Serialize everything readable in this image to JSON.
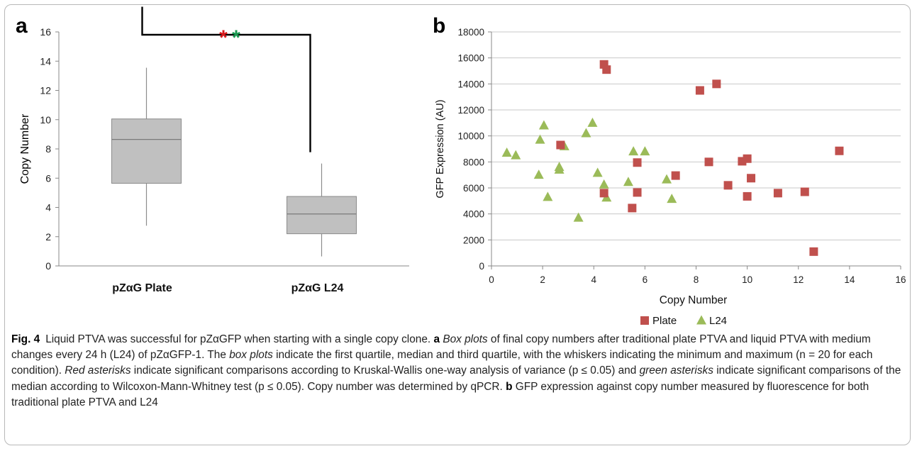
{
  "panel_a_letter": "a",
  "panel_b_letter": "b",
  "chart_data": [
    {
      "type": "box",
      "panel": "a",
      "ylabel": "Copy Number",
      "ylim": [
        0,
        16
      ],
      "yticks": [
        0,
        2,
        4,
        6,
        8,
        10,
        12,
        14,
        16
      ],
      "categories": [
        "pZαG Plate",
        "pZαG L24"
      ],
      "boxes": [
        {
          "min": 2.75,
          "q1": 5.65,
          "median": 8.65,
          "q3": 10.05,
          "max": 13.55
        },
        {
          "min": 0.65,
          "q1": 2.2,
          "median": 3.55,
          "q3": 4.75,
          "max": 7.0
        }
      ],
      "significance": {
        "markers": [
          "*",
          "*"
        ],
        "colors": [
          "#d7191c",
          "#1a9850"
        ]
      },
      "colors": {
        "box_fill": "#c0c0c0",
        "box_stroke": "#8c8c8c"
      }
    },
    {
      "type": "scatter",
      "panel": "b",
      "xlabel": "Copy Number",
      "ylabel": "GFP Expression (AU)",
      "xlim": [
        0,
        16
      ],
      "ylim": [
        0,
        18000
      ],
      "xticks": [
        0,
        2,
        4,
        6,
        8,
        10,
        12,
        14,
        16
      ],
      "yticks": [
        0,
        2000,
        4000,
        6000,
        8000,
        10000,
        12000,
        14000,
        16000,
        18000
      ],
      "grid": "horizontal",
      "legend_position": "bottom",
      "series": [
        {
          "name": "Plate",
          "marker": "square",
          "color": "#c0504d",
          "points": [
            [
              2.7,
              9300
            ],
            [
              4.4,
              15500
            ],
            [
              4.5,
              15100
            ],
            [
              4.4,
              5600
            ],
            [
              5.5,
              4450
            ],
            [
              5.7,
              7950
            ],
            [
              5.7,
              5650
            ],
            [
              7.2,
              6950
            ],
            [
              8.15,
              13500
            ],
            [
              8.8,
              14000
            ],
            [
              8.5,
              8000
            ],
            [
              9.25,
              6200
            ],
            [
              9.8,
              8050
            ],
            [
              10.0,
              8250
            ],
            [
              10.0,
              5350
            ],
            [
              10.15,
              6750
            ],
            [
              11.2,
              5600
            ],
            [
              12.25,
              5700
            ],
            [
              12.6,
              1100
            ],
            [
              13.6,
              8850
            ]
          ]
        },
        {
          "name": "L24",
          "marker": "triangle",
          "color": "#9bbb59",
          "points": [
            [
              0.6,
              8700
            ],
            [
              0.95,
              8500
            ],
            [
              1.85,
              7000
            ],
            [
              1.9,
              9700
            ],
            [
              2.05,
              10800
            ],
            [
              2.2,
              5300
            ],
            [
              2.65,
              7600
            ],
            [
              2.65,
              7400
            ],
            [
              2.85,
              9200
            ],
            [
              3.4,
              3700
            ],
            [
              3.7,
              10200
            ],
            [
              3.95,
              11000
            ],
            [
              4.15,
              7150
            ],
            [
              4.4,
              6250
            ],
            [
              4.5,
              5250
            ],
            [
              5.35,
              6450
            ],
            [
              5.55,
              8800
            ],
            [
              6.0,
              8800
            ],
            [
              6.85,
              6650
            ],
            [
              7.05,
              5150
            ]
          ]
        }
      ]
    }
  ],
  "caption": {
    "fig_label": "Fig. 4",
    "parts": [
      {
        "text": "Liquid PTVA was successful for pZαGFP when starting with a single copy clone. ",
        "style": "normal"
      },
      {
        "text": "a",
        "style": "bold"
      },
      {
        "text": " ",
        "style": "normal"
      },
      {
        "text": "Box plots",
        "style": "italic"
      },
      {
        "text": " of final copy numbers after traditional plate PTVA and liquid PTVA with medium changes every 24 h (L24) of pZαGFP-1. The ",
        "style": "normal"
      },
      {
        "text": "box plots",
        "style": "italic"
      },
      {
        "text": " indicate the first quartile, median and third quartile, with the whiskers indicating the minimum and maximum (n = 20 for each condition). ",
        "style": "normal"
      },
      {
        "text": "Red asterisks",
        "style": "italic"
      },
      {
        "text": " indicate significant comparisons according to Kruskal-Wallis one-way analysis of variance (p ≤ 0.05) and ",
        "style": "normal"
      },
      {
        "text": "green asterisks",
        "style": "italic"
      },
      {
        "text": " indicate significant comparisons of the median according to Wilcoxon-Mann-Whitney test (p ≤ 0.05). Copy number was determined by qPCR. ",
        "style": "normal"
      },
      {
        "text": "b",
        "style": "bold"
      },
      {
        "text": " GFP expression against copy number measured by fluorescence for both traditional plate PTVA and L24",
        "style": "normal"
      }
    ]
  }
}
